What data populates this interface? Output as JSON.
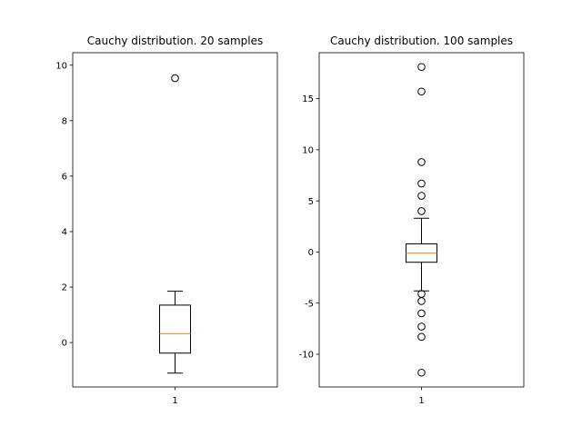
{
  "chart_data": [
    {
      "type": "boxplot",
      "title": "Cauchy distribution. 20 samples",
      "xlabel": "",
      "ylabel": "",
      "ylim": [
        -1.6,
        10.45
      ],
      "yticks": [
        0,
        2,
        4,
        6,
        8,
        10
      ],
      "categories": [
        "1"
      ],
      "box": {
        "whisker_low": -1.1,
        "q1": -0.38,
        "median": 0.32,
        "q3": 1.35,
        "whisker_high": 1.85,
        "outliers": [
          9.53
        ]
      }
    },
    {
      "type": "boxplot",
      "title": "Cauchy distribution. 100 samples",
      "xlabel": "",
      "ylabel": "",
      "ylim": [
        -13.2,
        19.5
      ],
      "yticks": [
        -10,
        -5,
        0,
        5,
        10,
        15
      ],
      "categories": [
        "1"
      ],
      "box": {
        "whisker_low": -3.8,
        "q1": -1.0,
        "median": -0.1,
        "q3": 0.8,
        "whisker_high": 3.3,
        "outliers": [
          18.1,
          15.7,
          8.8,
          6.7,
          5.5,
          4.0,
          -4.1,
          -4.8,
          -6.0,
          -7.3,
          -8.3,
          -11.8
        ]
      }
    }
  ],
  "colors": {
    "median": "#ff7f0e",
    "box": "#000000",
    "axes": "#000000"
  }
}
